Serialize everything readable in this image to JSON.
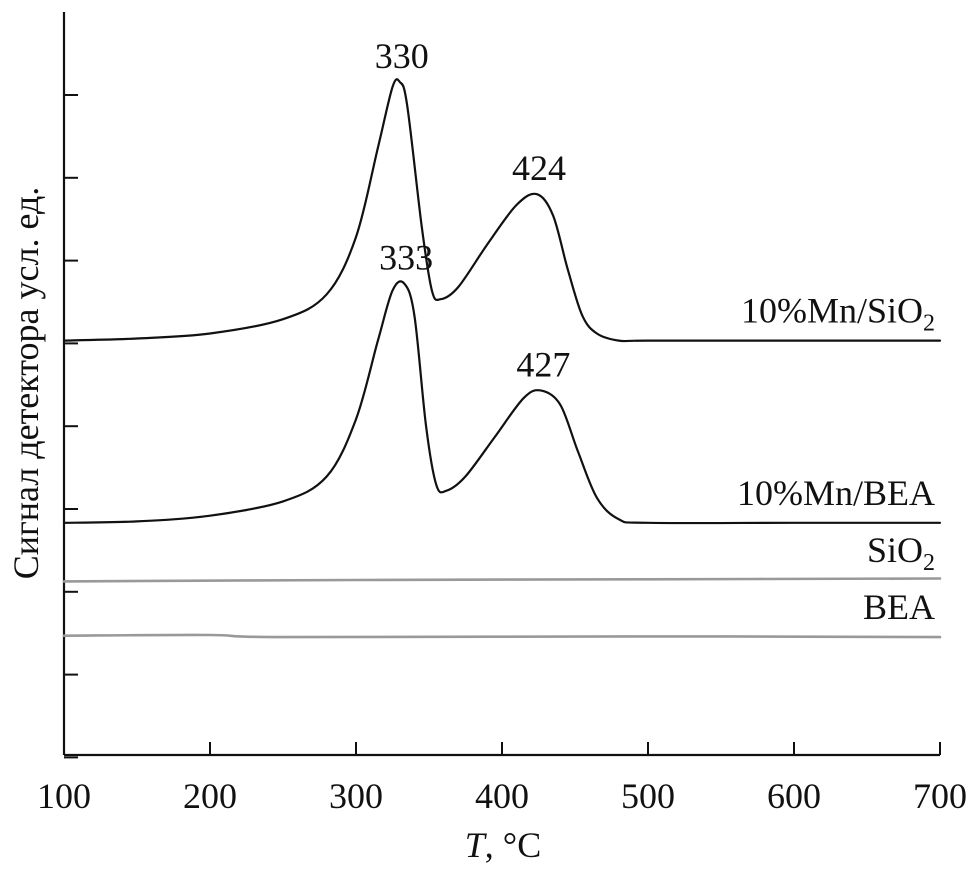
{
  "chart_data": {
    "type": "line",
    "xlabel_italic": "T",
    "xlabel_rest": ", °C",
    "ylabel": "Сигнал детектора усл. ед.",
    "xlim": [
      100,
      700
    ],
    "ylim": [
      -1.8,
      8.6
    ],
    "x_ticks": [
      100,
      200,
      300,
      400,
      500,
      600,
      700
    ],
    "y_tick_count": 9,
    "grid": false,
    "series": [
      {
        "name_main": "10%Mn/SiO",
        "name_sub": "2",
        "color": "#111111",
        "baseline": 4.0,
        "x": [
          100,
          150,
          200,
          250,
          280,
          300,
          315,
          325,
          330,
          335,
          345,
          352,
          358,
          370,
          390,
          410,
          424,
          435,
          445,
          455,
          465,
          480,
          500,
          600,
          700
        ],
        "values": [
          4.0,
          4.03,
          4.1,
          4.3,
          4.65,
          5.45,
          6.7,
          7.55,
          7.62,
          7.3,
          5.6,
          4.7,
          4.58,
          4.75,
          5.35,
          5.9,
          6.05,
          5.75,
          5.0,
          4.35,
          4.1,
          4.0,
          4.0,
          4.0,
          4.0
        ]
      },
      {
        "name_main": "10%Mn/BEA",
        "name_sub": "",
        "color": "#111111",
        "baseline": 1.45,
        "x": [
          100,
          150,
          200,
          250,
          280,
          300,
          315,
          325,
          333,
          340,
          348,
          355,
          362,
          375,
          395,
          415,
          427,
          440,
          452,
          465,
          480,
          500,
          600,
          700
        ],
        "values": [
          1.45,
          1.47,
          1.55,
          1.75,
          2.1,
          2.9,
          4.0,
          4.7,
          4.8,
          4.35,
          2.8,
          1.98,
          1.9,
          2.1,
          2.65,
          3.2,
          3.3,
          3.1,
          2.45,
          1.8,
          1.5,
          1.45,
          1.45,
          1.45
        ]
      },
      {
        "name_main": "SiO",
        "name_sub": "2",
        "color": "#999999",
        "baseline": 0.65,
        "x": [
          100,
          300,
          500,
          700
        ],
        "values": [
          0.63,
          0.65,
          0.66,
          0.67
        ]
      },
      {
        "name_main": "BEA",
        "name_sub": "",
        "color": "#999999",
        "baseline": -0.15,
        "x": [
          100,
          200,
          250,
          500,
          700
        ],
        "values": [
          -0.13,
          -0.12,
          -0.15,
          -0.14,
          -0.15
        ]
      }
    ],
    "annotations": [
      {
        "text": "330",
        "x": 330,
        "y": 7.62
      },
      {
        "text": "424",
        "x": 424,
        "y": 6.05
      },
      {
        "text": "333",
        "x": 333,
        "y": 4.8
      },
      {
        "text": "427",
        "x": 427,
        "y": 3.3
      }
    ]
  }
}
